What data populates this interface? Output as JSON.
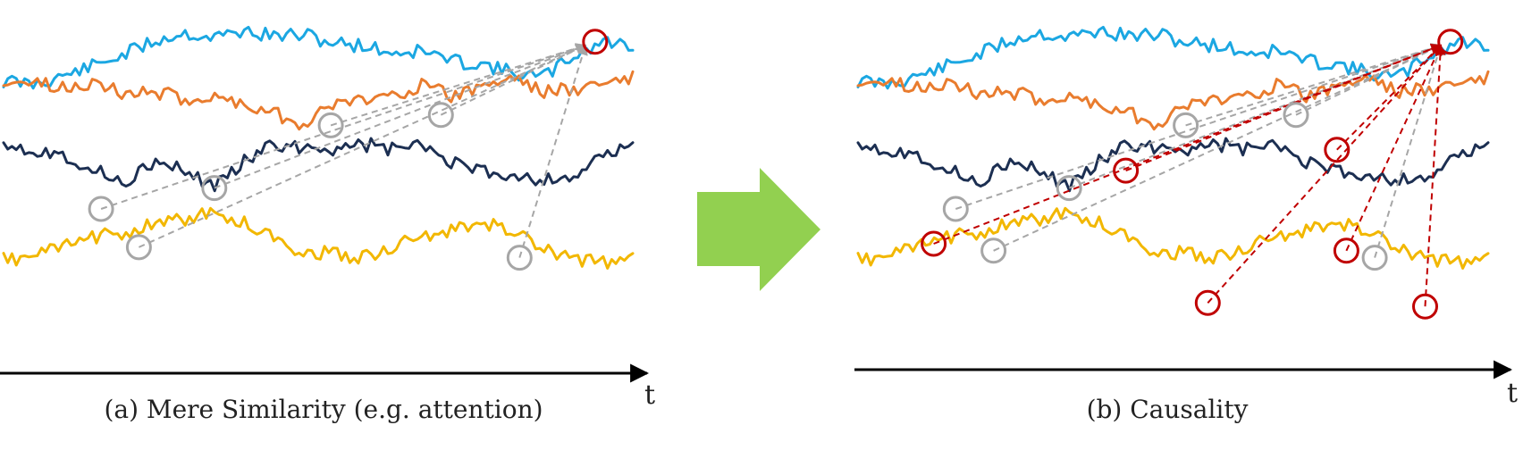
{
  "colors": {
    "cyan": "#1ba7e2",
    "orange": "#e97c2e",
    "navy": "#1c2f52",
    "yellow": "#f2b700",
    "gray": "#a6a6a6",
    "red": "#c00000",
    "arrow_green": "#92d050"
  },
  "panels": [
    {
      "id": "a",
      "caption": "(a) Mere Similarity (e.g. attention)",
      "axis_label": "t",
      "series": [
        {
          "name": "cyan-series",
          "color": "cyan",
          "base": 0.18,
          "seed": 11,
          "shape": [
            0.78,
            0.82,
            0.7,
            0.55,
            0.38,
            0.18,
            0.05,
            0.12,
            0.02,
            0.1,
            0.08,
            0.2,
            0.24,
            0.35,
            0.32,
            0.48,
            0.52,
            0.66,
            0.72,
            0.4,
            0.18,
            0.24
          ]
        },
        {
          "name": "orange-series",
          "color": "orange",
          "base": 0.3,
          "seed": 23,
          "shape": [
            0.12,
            0.18,
            0.25,
            0.15,
            0.35,
            0.3,
            0.42,
            0.4,
            0.48,
            0.62,
            0.8,
            0.5,
            0.42,
            0.35,
            0.2,
            0.38,
            0.22,
            0.08,
            0.3,
            0.28,
            0.18,
            0.1
          ]
        },
        {
          "name": "navy-series",
          "color": "navy",
          "base": 0.48,
          "seed": 37,
          "shape": [
            0.1,
            0.25,
            0.3,
            0.55,
            0.72,
            0.45,
            0.55,
            0.8,
            0.4,
            0.18,
            0.2,
            0.22,
            0.15,
            0.24,
            0.18,
            0.45,
            0.58,
            0.62,
            0.7,
            0.65,
            0.35,
            0.2
          ]
        },
        {
          "name": "yellow-series",
          "color": "yellow",
          "base": 0.7,
          "seed": 53,
          "shape": [
            0.75,
            0.68,
            0.55,
            0.4,
            0.32,
            0.22,
            0.12,
            0.05,
            0.18,
            0.4,
            0.62,
            0.65,
            0.7,
            0.55,
            0.4,
            0.3,
            0.2,
            0.28,
            0.6,
            0.72,
            0.78,
            0.72
          ]
        }
      ],
      "links": [
        {
          "from": [
            0.155,
            0.6
          ],
          "to": "target",
          "color": "gray"
        },
        {
          "from": [
            0.215,
            0.71
          ],
          "to": "target",
          "color": "gray"
        },
        {
          "from": [
            0.335,
            0.54
          ],
          "to": "target",
          "color": "gray"
        },
        {
          "from": [
            0.52,
            0.36
          ],
          "to": "target",
          "color": "gray"
        },
        {
          "from": [
            0.695,
            0.33
          ],
          "to": "target",
          "color": "gray"
        },
        {
          "from": [
            0.82,
            0.74
          ],
          "to": "target",
          "color": "gray"
        }
      ],
      "gray_markers": [
        [
          0.155,
          0.6
        ],
        [
          0.215,
          0.71
        ],
        [
          0.335,
          0.54
        ],
        [
          0.52,
          0.36
        ],
        [
          0.695,
          0.33
        ],
        [
          0.82,
          0.74
        ]
      ],
      "red_markers": [
        [
          0.94,
          0.12
        ]
      ],
      "target": [
        0.925,
        0.13
      ]
    },
    {
      "id": "b",
      "caption": "(b) Causality",
      "axis_label": "t",
      "series": [
        {
          "name": "cyan-series",
          "color": "cyan",
          "base": 0.18,
          "seed": 11,
          "shape": [
            0.78,
            0.82,
            0.7,
            0.55,
            0.38,
            0.18,
            0.05,
            0.12,
            0.02,
            0.1,
            0.08,
            0.2,
            0.24,
            0.35,
            0.32,
            0.48,
            0.52,
            0.66,
            0.72,
            0.4,
            0.18,
            0.24
          ]
        },
        {
          "name": "orange-series",
          "color": "orange",
          "base": 0.3,
          "seed": 23,
          "shape": [
            0.12,
            0.18,
            0.25,
            0.15,
            0.35,
            0.3,
            0.42,
            0.4,
            0.48,
            0.62,
            0.8,
            0.5,
            0.42,
            0.35,
            0.2,
            0.38,
            0.22,
            0.08,
            0.3,
            0.28,
            0.18,
            0.1
          ]
        },
        {
          "name": "navy-series",
          "color": "navy",
          "base": 0.48,
          "seed": 37,
          "shape": [
            0.1,
            0.25,
            0.3,
            0.55,
            0.72,
            0.45,
            0.55,
            0.8,
            0.4,
            0.18,
            0.2,
            0.22,
            0.15,
            0.24,
            0.18,
            0.45,
            0.58,
            0.62,
            0.7,
            0.65,
            0.35,
            0.2
          ]
        },
        {
          "name": "yellow-series",
          "color": "yellow",
          "base": 0.7,
          "seed": 53,
          "shape": [
            0.75,
            0.68,
            0.55,
            0.4,
            0.32,
            0.22,
            0.12,
            0.05,
            0.18,
            0.4,
            0.62,
            0.65,
            0.7,
            0.55,
            0.4,
            0.3,
            0.2,
            0.28,
            0.6,
            0.72,
            0.78,
            0.72
          ]
        }
      ],
      "links": [
        {
          "from": [
            0.155,
            0.6
          ],
          "to": "target",
          "color": "gray"
        },
        {
          "from": [
            0.215,
            0.72
          ],
          "to": "target",
          "color": "gray"
        },
        {
          "from": [
            0.335,
            0.54
          ],
          "to": "target",
          "color": "gray"
        },
        {
          "from": [
            0.52,
            0.36
          ],
          "to": "target",
          "color": "gray"
        },
        {
          "from": [
            0.695,
            0.33
          ],
          "to": "target",
          "color": "gray"
        },
        {
          "from": [
            0.82,
            0.74
          ],
          "to": "target",
          "color": "gray"
        },
        {
          "from": [
            0.12,
            0.7
          ],
          "to": "target",
          "color": "red"
        },
        {
          "from": [
            0.425,
            0.49
          ],
          "to": "target",
          "color": "red"
        },
        {
          "from": [
            0.555,
            0.87
          ],
          "to": "target",
          "color": "red"
        },
        {
          "from": [
            0.76,
            0.43
          ],
          "to": "target",
          "color": "red"
        },
        {
          "from": [
            0.775,
            0.72
          ],
          "to": "target",
          "color": "red"
        },
        {
          "from": [
            0.9,
            0.88
          ],
          "to": "target",
          "color": "red"
        }
      ],
      "gray_markers": [
        [
          0.155,
          0.6
        ],
        [
          0.215,
          0.72
        ],
        [
          0.335,
          0.54
        ],
        [
          0.52,
          0.36
        ],
        [
          0.695,
          0.33
        ],
        [
          0.82,
          0.74
        ]
      ],
      "red_markers": [
        [
          0.12,
          0.7
        ],
        [
          0.425,
          0.49
        ],
        [
          0.555,
          0.87
        ],
        [
          0.76,
          0.43
        ],
        [
          0.775,
          0.72
        ],
        [
          0.9,
          0.88
        ],
        [
          0.94,
          0.12
        ]
      ],
      "target": [
        0.925,
        0.13
      ]
    }
  ]
}
